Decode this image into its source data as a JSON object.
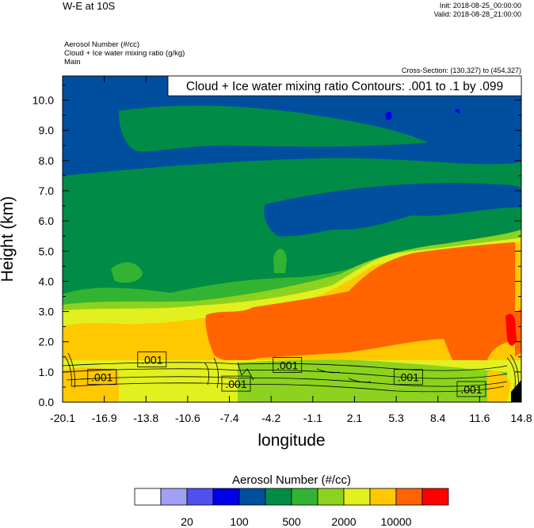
{
  "header": {
    "title": "W-E at 10S",
    "init": "Init: 2018-08-25_00:00:00",
    "valid": "Valid: 2018-08-28_21:00:00",
    "fields": [
      "Aerosol Number   (#/cc)",
      "Cloud + Ice water mixing ratio   (g/kg)",
      "Main"
    ],
    "cross_section": "Cross-Section: (130,327) to (454,327)"
  },
  "colors": {
    "bin_colors": [
      "#ffffff",
      "#a0a0f5",
      "#5050f0",
      "#0000e6",
      "#004f9e",
      "#008c46",
      "#32b432",
      "#8cd21e",
      "#e1f01e",
      "#ffc800",
      "#ff6400",
      "#ff0000"
    ],
    "contour": "#000000"
  },
  "chart_data": {
    "type": "heatmap",
    "title": "Cloud + Ice water mixing ratio Contours: .001 to .1 by .099",
    "xlabel": "longitude",
    "ylabel": "Height (km)",
    "xlim": [
      -20.1,
      14.8
    ],
    "ylim": [
      0,
      10.8
    ],
    "x_ticks": [
      "-20.1",
      "-16.9",
      "-13.8",
      "-10.6",
      "-7.4",
      "-4.2",
      "-1.1",
      "2.1",
      "5.3",
      "8.4",
      "11.6",
      "14.8"
    ],
    "y_ticks": [
      "0.0",
      "1.0",
      "2.0",
      "3.0",
      "4.0",
      "5.0",
      "6.0",
      "7.0",
      "8.0",
      "9.0",
      "10.0"
    ],
    "shaded_field": "Aerosol Number (#/cc)",
    "contour_field": "Cloud + Ice water mixing ratio (g/kg)",
    "contour_labels": [
      {
        "text": ".001",
        "x": -13.3,
        "y": 1.4
      },
      {
        "text": ".001",
        "x": -17.1,
        "y": 0.82
      },
      {
        "text": ".001",
        "x": -6.9,
        "y": 0.6
      },
      {
        "text": ".001",
        "x": -3.0,
        "y": 1.22
      },
      {
        "text": ".001",
        "x": 6.2,
        "y": 0.82
      },
      {
        "text": ".001",
        "x": 11.0,
        "y": 0.42
      }
    ],
    "colorbar": {
      "title": "Aerosol Number  (#/cc)",
      "labels": [
        "20",
        "100",
        "500",
        "2000",
        "10000"
      ]
    }
  }
}
